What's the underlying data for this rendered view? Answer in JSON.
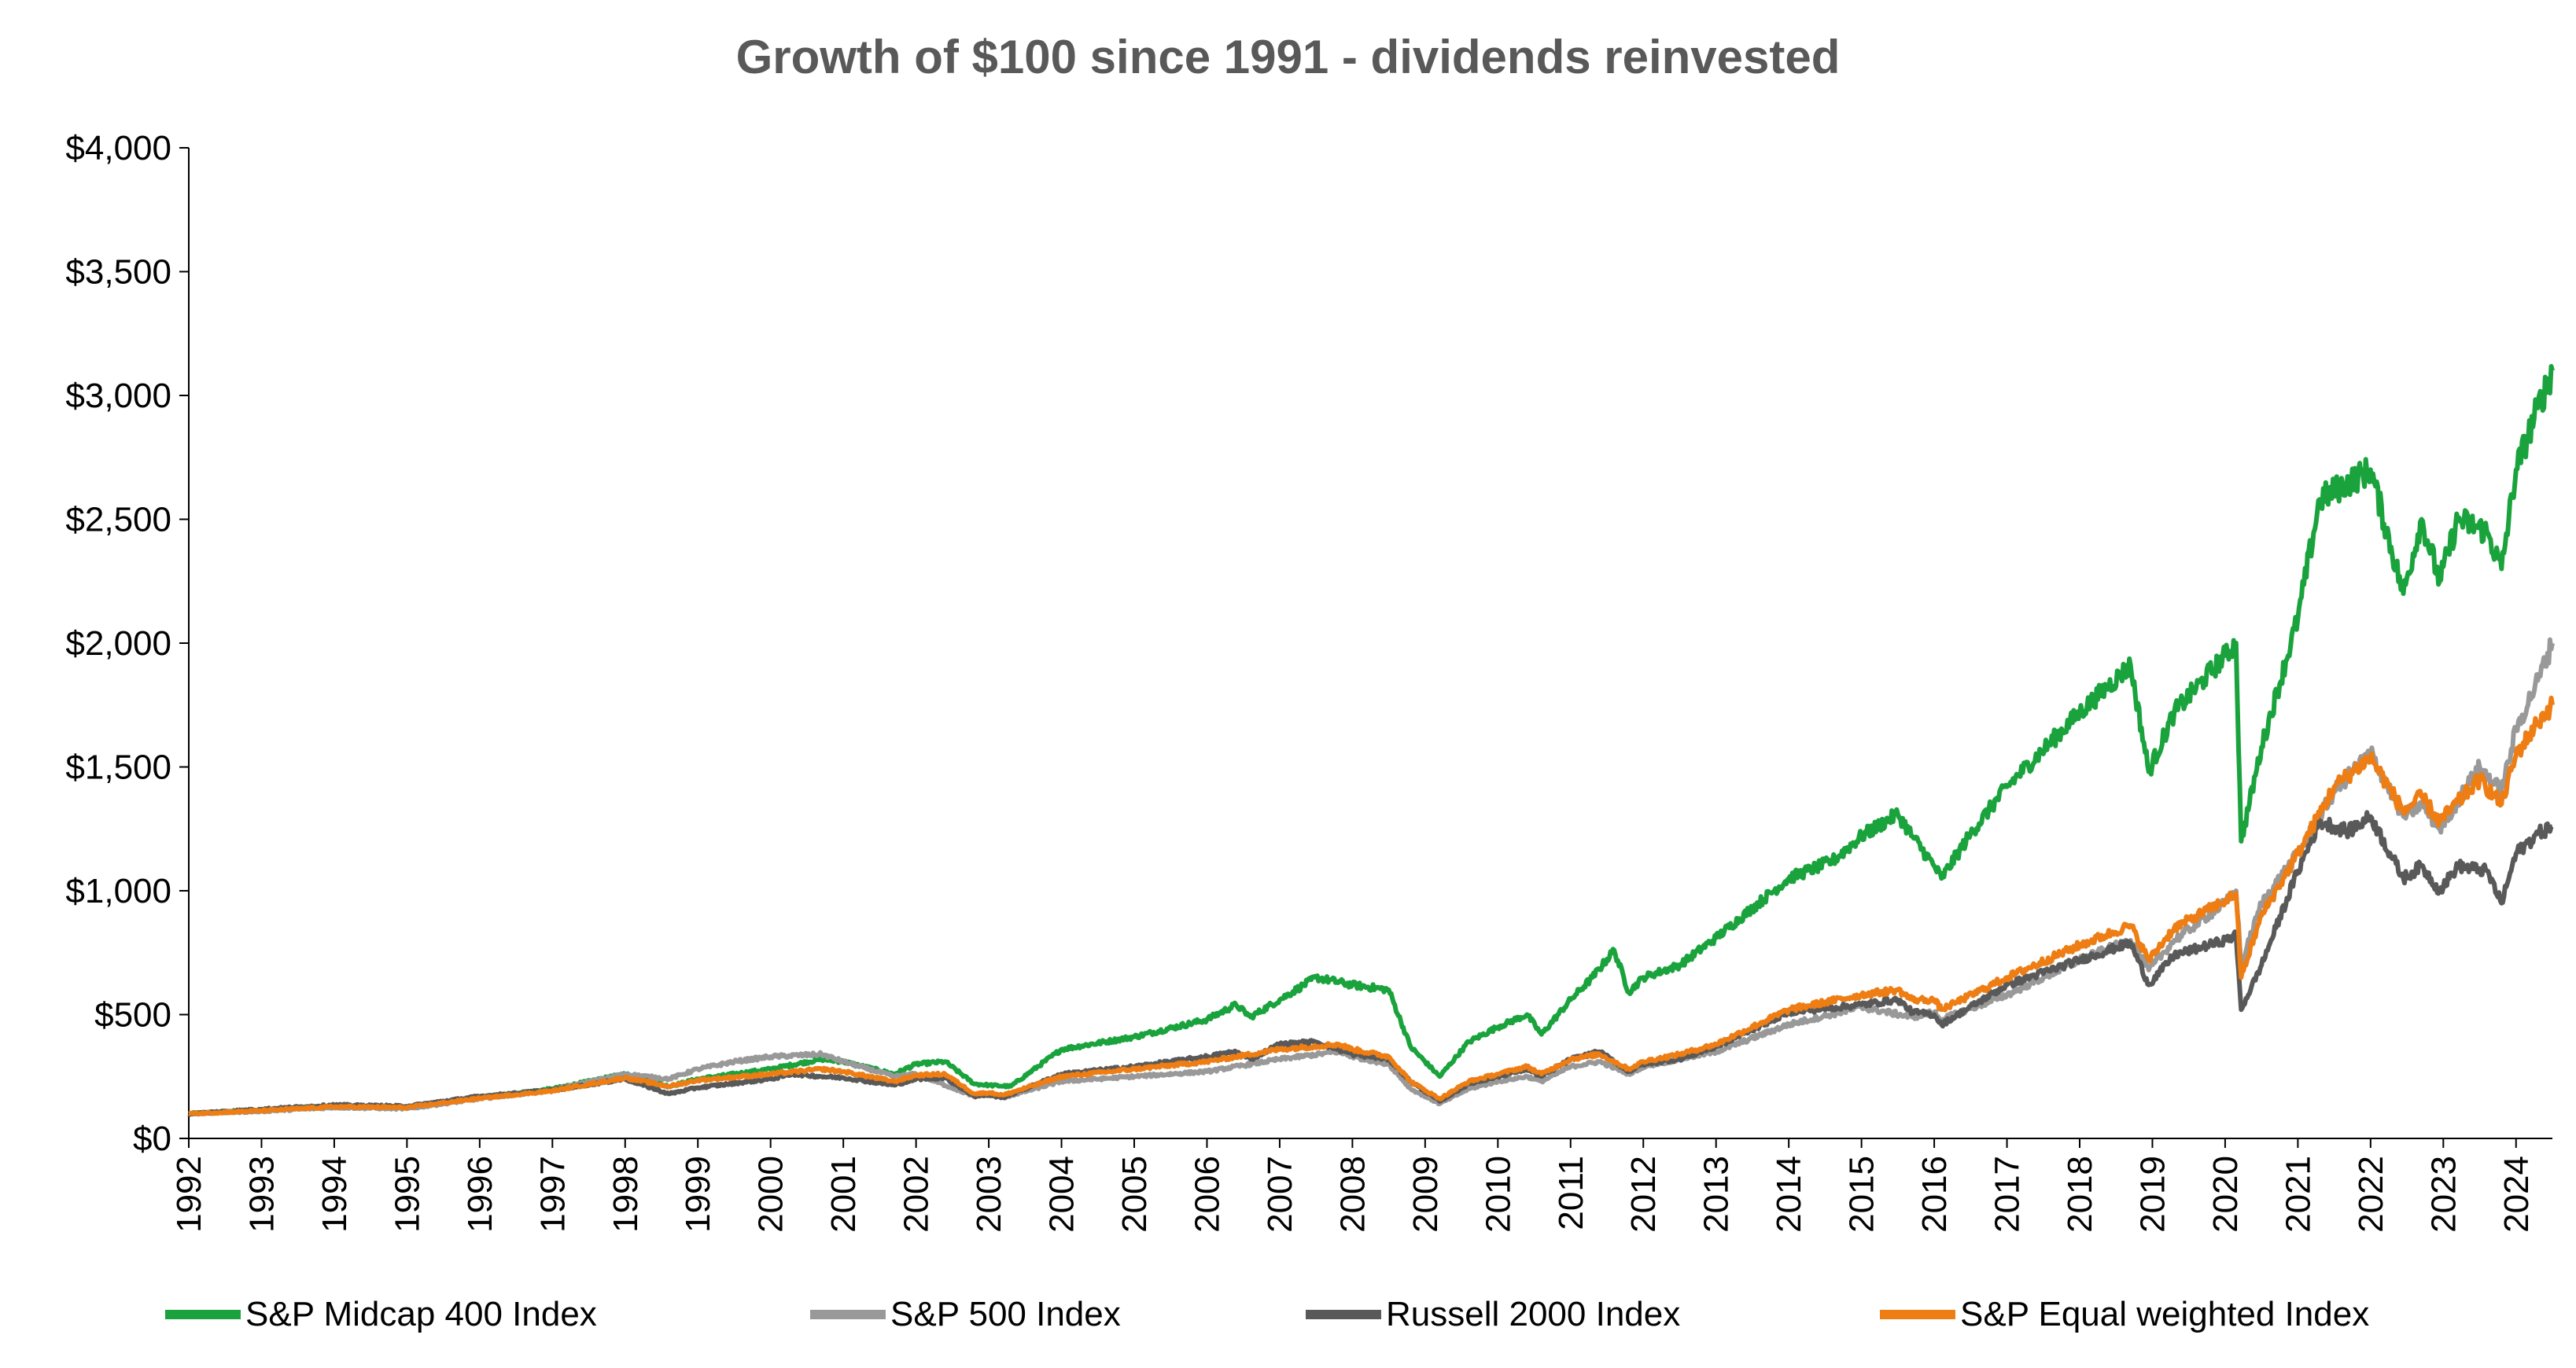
{
  "chart_data": {
    "type": "line",
    "title": "Growth of $100 since 1991 - dividends reinvested",
    "xlabel": "",
    "ylabel": "",
    "x_ticks": [
      "1992",
      "1993",
      "1994",
      "1995",
      "1996",
      "1997",
      "1998",
      "1999",
      "2000",
      "2001",
      "2002",
      "2003",
      "2004",
      "2005",
      "2006",
      "2007",
      "2008",
      "2009",
      "2010",
      "2011",
      "2012",
      "2013",
      "2014",
      "2015",
      "2016",
      "2017",
      "2018",
      "2019",
      "2020",
      "2021",
      "2022",
      "2023",
      "2024"
    ],
    "y_ticks": [
      "$0",
      "$500",
      "$1,000",
      "$1,500",
      "$2,000",
      "$2,500",
      "$3,000",
      "$3,500",
      "$4,000"
    ],
    "xlim": [
      1992.0,
      2024.5
    ],
    "ylim": [
      0,
      4000
    ],
    "grid": false,
    "legend_position": "bottom",
    "series": [
      {
        "name": "S&P Midcap 400 Index",
        "color": "#1aa33c",
        "points": [
          [
            1992.0,
            100
          ],
          [
            1993.0,
            115
          ],
          [
            1994.0,
            130
          ],
          [
            1995.0,
            125
          ],
          [
            1996.0,
            165
          ],
          [
            1997.0,
            200
          ],
          [
            1998.0,
            260
          ],
          [
            1998.6,
            210
          ],
          [
            1999.0,
            240
          ],
          [
            2000.0,
            280
          ],
          [
            2000.7,
            320
          ],
          [
            2001.0,
            310
          ],
          [
            2001.7,
            260
          ],
          [
            2002.0,
            300
          ],
          [
            2002.4,
            310
          ],
          [
            2002.8,
            220
          ],
          [
            2003.0,
            215
          ],
          [
            2003.3,
            210
          ],
          [
            2004.0,
            360
          ],
          [
            2005.0,
            410
          ],
          [
            2006.0,
            480
          ],
          [
            2006.4,
            540
          ],
          [
            2006.6,
            490
          ],
          [
            2007.0,
            560
          ],
          [
            2007.5,
            650
          ],
          [
            2008.0,
            620
          ],
          [
            2008.5,
            600
          ],
          [
            2008.8,
            370
          ],
          [
            2009.2,
            250
          ],
          [
            2009.6,
            390
          ],
          [
            2010.0,
            450
          ],
          [
            2010.4,
            500
          ],
          [
            2010.6,
            420
          ],
          [
            2011.0,
            560
          ],
          [
            2011.3,
            650
          ],
          [
            2011.6,
            760
          ],
          [
            2011.8,
            590
          ],
          [
            2012.0,
            650
          ],
          [
            2012.5,
            700
          ],
          [
            2013.0,
            810
          ],
          [
            2014.0,
            1050
          ],
          [
            2014.6,
            1120
          ],
          [
            2015.0,
            1220
          ],
          [
            2015.5,
            1310
          ],
          [
            2015.7,
            1220
          ],
          [
            2016.0,
            1100
          ],
          [
            2016.1,
            1050
          ],
          [
            2016.5,
            1230
          ],
          [
            2017.0,
            1420
          ],
          [
            2018.0,
            1720
          ],
          [
            2018.7,
            1910
          ],
          [
            2018.95,
            1480
          ],
          [
            2019.3,
            1720
          ],
          [
            2020.0,
            1950
          ],
          [
            2020.15,
            2000
          ],
          [
            2020.22,
            1200
          ],
          [
            2020.5,
            1580
          ],
          [
            2021.0,
            2100
          ],
          [
            2021.3,
            2580
          ],
          [
            2021.7,
            2650
          ],
          [
            2022.0,
            2700
          ],
          [
            2022.45,
            2200
          ],
          [
            2022.7,
            2500
          ],
          [
            2022.95,
            2250
          ],
          [
            2023.2,
            2500
          ],
          [
            2023.6,
            2450
          ],
          [
            2023.8,
            2300
          ],
          [
            2024.0,
            2700
          ],
          [
            2024.3,
            2950
          ],
          [
            2024.5,
            3100
          ]
        ]
      },
      {
        "name": "S&P 500 Index",
        "color": "#999999",
        "points": [
          [
            1992.0,
            100
          ],
          [
            1993.0,
            110
          ],
          [
            1994.0,
            125
          ],
          [
            1995.0,
            120
          ],
          [
            1996.0,
            160
          ],
          [
            1997.0,
            195
          ],
          [
            1998.0,
            260
          ],
          [
            1998.6,
            240
          ],
          [
            1999.0,
            280
          ],
          [
            1999.5,
            310
          ],
          [
            2000.0,
            330
          ],
          [
            2000.7,
            340
          ],
          [
            2001.0,
            310
          ],
          [
            2001.7,
            250
          ],
          [
            2002.0,
            260
          ],
          [
            2002.8,
            170
          ],
          [
            2003.0,
            180
          ],
          [
            2003.2,
            165
          ],
          [
            2004.0,
            230
          ],
          [
            2005.0,
            250
          ],
          [
            2006.0,
            270
          ],
          [
            2007.0,
            320
          ],
          [
            2007.8,
            350
          ],
          [
            2008.0,
            330
          ],
          [
            2008.5,
            300
          ],
          [
            2008.8,
            200
          ],
          [
            2009.2,
            140
          ],
          [
            2009.6,
            200
          ],
          [
            2010.0,
            230
          ],
          [
            2010.4,
            250
          ],
          [
            2010.6,
            230
          ],
          [
            2011.0,
            290
          ],
          [
            2011.4,
            310
          ],
          [
            2011.8,
            260
          ],
          [
            2012.0,
            290
          ],
          [
            2012.5,
            320
          ],
          [
            2013.0,
            350
          ],
          [
            2014.0,
            460
          ],
          [
            2015.0,
            530
          ],
          [
            2015.7,
            490
          ],
          [
            2016.0,
            510
          ],
          [
            2016.1,
            480
          ],
          [
            2017.0,
            580
          ],
          [
            2018.0,
            720
          ],
          [
            2018.7,
            800
          ],
          [
            2018.95,
            680
          ],
          [
            2019.3,
            800
          ],
          [
            2020.0,
            950
          ],
          [
            2020.15,
            1000
          ],
          [
            2020.22,
            700
          ],
          [
            2020.5,
            950
          ],
          [
            2021.0,
            1150
          ],
          [
            2021.5,
            1400
          ],
          [
            2022.0,
            1560
          ],
          [
            2022.45,
            1300
          ],
          [
            2022.7,
            1350
          ],
          [
            2022.95,
            1250
          ],
          [
            2023.5,
            1500
          ],
          [
            2023.8,
            1400
          ],
          [
            2024.0,
            1650
          ],
          [
            2024.3,
            1850
          ],
          [
            2024.5,
            2000
          ]
        ]
      },
      {
        "name": "Russell 2000 Index",
        "color": "#595959",
        "points": [
          [
            1992.0,
            100
          ],
          [
            1993.0,
            118
          ],
          [
            1994.0,
            135
          ],
          [
            1995.0,
            130
          ],
          [
            1996.0,
            170
          ],
          [
            1997.0,
            195
          ],
          [
            1998.0,
            240
          ],
          [
            1998.6,
            180
          ],
          [
            1999.0,
            205
          ],
          [
            2000.0,
            240
          ],
          [
            2000.3,
            260
          ],
          [
            2000.7,
            250
          ],
          [
            2001.0,
            245
          ],
          [
            2001.7,
            215
          ],
          [
            2002.0,
            240
          ],
          [
            2002.4,
            245
          ],
          [
            2002.8,
            170
          ],
          [
            2003.0,
            175
          ],
          [
            2003.2,
            165
          ],
          [
            2004.0,
            260
          ],
          [
            2005.0,
            290
          ],
          [
            2006.0,
            330
          ],
          [
            2006.4,
            350
          ],
          [
            2006.6,
            320
          ],
          [
            2007.0,
            380
          ],
          [
            2007.5,
            390
          ],
          [
            2008.0,
            340
          ],
          [
            2008.5,
            320
          ],
          [
            2008.8,
            230
          ],
          [
            2009.2,
            150
          ],
          [
            2009.6,
            220
          ],
          [
            2010.0,
            250
          ],
          [
            2010.4,
            280
          ],
          [
            2010.6,
            250
          ],
          [
            2011.0,
            320
          ],
          [
            2011.4,
            350
          ],
          [
            2011.8,
            270
          ],
          [
            2012.0,
            300
          ],
          [
            2012.5,
            320
          ],
          [
            2013.0,
            370
          ],
          [
            2014.0,
            510
          ],
          [
            2015.0,
            540
          ],
          [
            2015.5,
            560
          ],
          [
            2015.7,
            510
          ],
          [
            2016.0,
            500
          ],
          [
            2016.1,
            460
          ],
          [
            2017.0,
            620
          ],
          [
            2018.0,
            720
          ],
          [
            2018.7,
            790
          ],
          [
            2018.95,
            620
          ],
          [
            2019.3,
            740
          ],
          [
            2020.0,
            800
          ],
          [
            2020.15,
            820
          ],
          [
            2020.22,
            520
          ],
          [
            2020.5,
            700
          ],
          [
            2021.0,
            1080
          ],
          [
            2021.3,
            1280
          ],
          [
            2021.7,
            1240
          ],
          [
            2022.0,
            1300
          ],
          [
            2022.45,
            1050
          ],
          [
            2022.7,
            1100
          ],
          [
            2022.95,
            1000
          ],
          [
            2023.2,
            1100
          ],
          [
            2023.6,
            1080
          ],
          [
            2023.8,
            950
          ],
          [
            2024.0,
            1150
          ],
          [
            2024.3,
            1230
          ],
          [
            2024.5,
            1260
          ]
        ]
      },
      {
        "name": "S&P Equal weighted Index",
        "color": "#ee7d13",
        "points": [
          [
            1992.0,
            100
          ],
          [
            1993.0,
            112
          ],
          [
            1994.0,
            128
          ],
          [
            1995.0,
            125
          ],
          [
            1996.0,
            162
          ],
          [
            1997.0,
            192
          ],
          [
            1998.0,
            245
          ],
          [
            1998.6,
            210
          ],
          [
            1999.0,
            235
          ],
          [
            2000.0,
            260
          ],
          [
            2000.7,
            280
          ],
          [
            2001.0,
            270
          ],
          [
            2001.7,
            230
          ],
          [
            2002.0,
            255
          ],
          [
            2002.4,
            260
          ],
          [
            2002.8,
            180
          ],
          [
            2003.0,
            185
          ],
          [
            2003.2,
            175
          ],
          [
            2004.0,
            250
          ],
          [
            2005.0,
            280
          ],
          [
            2006.0,
            310
          ],
          [
            2007.0,
            360
          ],
          [
            2007.8,
            380
          ],
          [
            2008.0,
            360
          ],
          [
            2008.5,
            330
          ],
          [
            2008.8,
            230
          ],
          [
            2009.2,
            160
          ],
          [
            2009.6,
            230
          ],
          [
            2010.0,
            260
          ],
          [
            2010.4,
            290
          ],
          [
            2010.6,
            260
          ],
          [
            2011.0,
            320
          ],
          [
            2011.4,
            340
          ],
          [
            2011.8,
            280
          ],
          [
            2012.0,
            310
          ],
          [
            2012.5,
            340
          ],
          [
            2013.0,
            380
          ],
          [
            2014.0,
            520
          ],
          [
            2015.0,
            580
          ],
          [
            2015.5,
            600
          ],
          [
            2015.7,
            560
          ],
          [
            2016.0,
            560
          ],
          [
            2016.1,
            520
          ],
          [
            2017.0,
            650
          ],
          [
            2018.0,
            780
          ],
          [
            2018.7,
            860
          ],
          [
            2018.95,
            720
          ],
          [
            2019.3,
            850
          ],
          [
            2020.0,
            960
          ],
          [
            2020.15,
            990
          ],
          [
            2020.22,
            650
          ],
          [
            2020.5,
            900
          ],
          [
            2021.0,
            1150
          ],
          [
            2021.5,
            1420
          ],
          [
            2022.0,
            1540
          ],
          [
            2022.45,
            1320
          ],
          [
            2022.7,
            1380
          ],
          [
            2022.95,
            1280
          ],
          [
            2023.5,
            1450
          ],
          [
            2023.8,
            1350
          ],
          [
            2024.0,
            1550
          ],
          [
            2024.3,
            1680
          ],
          [
            2024.5,
            1750
          ]
        ]
      }
    ]
  }
}
